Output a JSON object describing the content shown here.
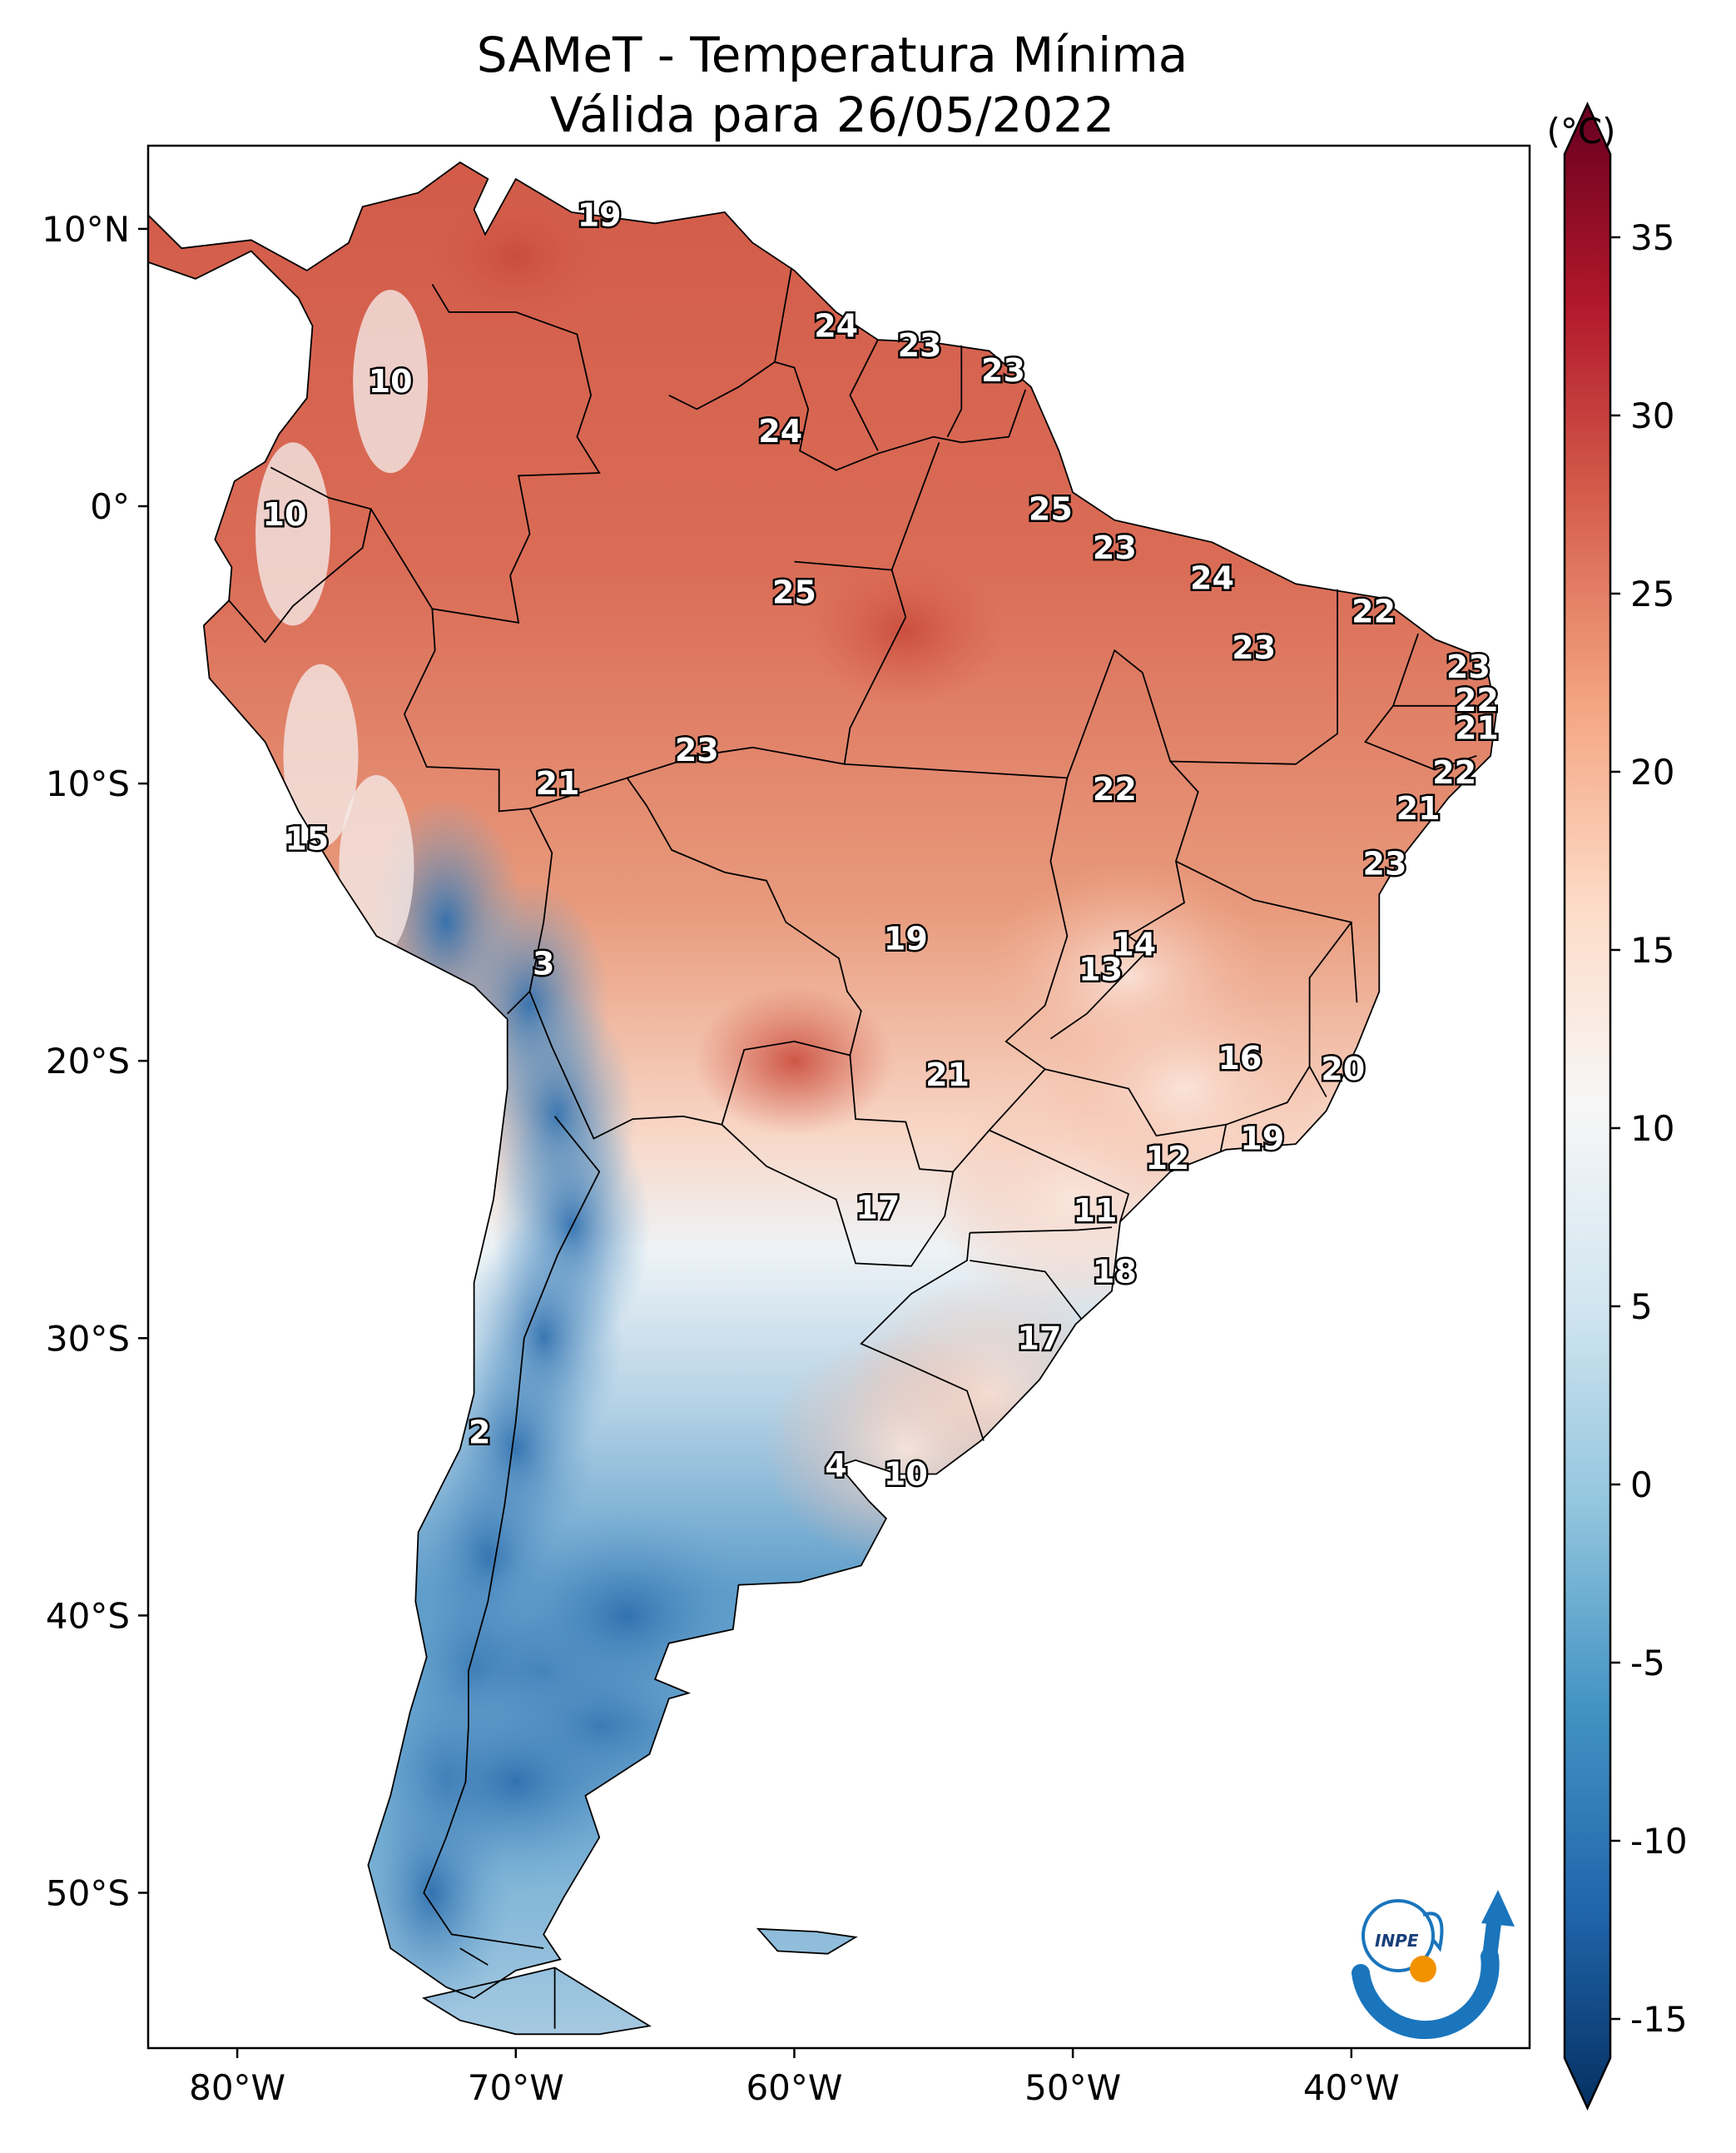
{
  "title_line1": "SAMeT - Temperatura Mínima",
  "title_line2": "Válida para 26/05/2022",
  "colorbar": {
    "unit": "(°C)",
    "ticks": [
      "35",
      "30",
      "25",
      "20",
      "15",
      "10",
      "5",
      "0",
      "-5",
      "-10",
      "-15"
    ],
    "colors": [
      "#67001f",
      "#b2182b",
      "#d6604d",
      "#f4a582",
      "#fddbc7",
      "#f7f7f7",
      "#d1e5f0",
      "#92c5de",
      "#4393c3",
      "#2166ac",
      "#053061"
    ]
  },
  "axes": {
    "lat_labels": [
      "10°N",
      "0°",
      "10°S",
      "20°S",
      "30°S",
      "40°S",
      "50°S"
    ],
    "lon_labels": [
      "80°W",
      "70°W",
      "60°W",
      "50°W",
      "40°W"
    ]
  },
  "station_labels": [
    {
      "text": "19",
      "lon": -67.0,
      "lat": 10.5
    },
    {
      "text": "10",
      "lon": -74.5,
      "lat": 4.5
    },
    {
      "text": "24",
      "lon": -58.5,
      "lat": 6.5
    },
    {
      "text": "23",
      "lon": -55.5,
      "lat": 5.8
    },
    {
      "text": "23",
      "lon": -52.5,
      "lat": 4.9
    },
    {
      "text": "24",
      "lon": -60.5,
      "lat": 2.7
    },
    {
      "text": "10",
      "lon": -78.3,
      "lat": -0.3
    },
    {
      "text": "25",
      "lon": -50.8,
      "lat": -0.1
    },
    {
      "text": "23",
      "lon": -48.5,
      "lat": -1.5
    },
    {
      "text": "25",
      "lon": -60.0,
      "lat": -3.1
    },
    {
      "text": "24",
      "lon": -45.0,
      "lat": -2.6
    },
    {
      "text": "22",
      "lon": -39.2,
      "lat": -3.8
    },
    {
      "text": "23",
      "lon": -43.5,
      "lat": -5.1
    },
    {
      "text": "23",
      "lon": -35.8,
      "lat": -5.8
    },
    {
      "text": "22",
      "lon": -35.5,
      "lat": -7.0
    },
    {
      "text": "21",
      "lon": -35.5,
      "lat": -8.0
    },
    {
      "text": "23",
      "lon": -63.5,
      "lat": -8.8
    },
    {
      "text": "21",
      "lon": -68.5,
      "lat": -10.0
    },
    {
      "text": "22",
      "lon": -48.5,
      "lat": -10.2
    },
    {
      "text": "22",
      "lon": -36.3,
      "lat": -9.6
    },
    {
      "text": "21",
      "lon": -37.6,
      "lat": -10.9
    },
    {
      "text": "15",
      "lon": -77.5,
      "lat": -12.0
    },
    {
      "text": "23",
      "lon": -38.8,
      "lat": -12.9
    },
    {
      "text": "14",
      "lon": -47.8,
      "lat": -15.8
    },
    {
      "text": "19",
      "lon": -56.0,
      "lat": -15.6
    },
    {
      "text": "13",
      "lon": -49.0,
      "lat": -16.7
    },
    {
      "text": "3",
      "lon": -69.0,
      "lat": -16.5
    },
    {
      "text": "16",
      "lon": -44.0,
      "lat": -19.9
    },
    {
      "text": "20",
      "lon": -40.3,
      "lat": -20.3
    },
    {
      "text": "21",
      "lon": -54.5,
      "lat": -20.5
    },
    {
      "text": "19",
      "lon": -43.2,
      "lat": -22.8
    },
    {
      "text": "12",
      "lon": -46.6,
      "lat": -23.5
    },
    {
      "text": "17",
      "lon": -57.0,
      "lat": -25.3
    },
    {
      "text": "11",
      "lon": -49.2,
      "lat": -25.4
    },
    {
      "text": "18",
      "lon": -48.5,
      "lat": -27.6
    },
    {
      "text": "17",
      "lon": -51.2,
      "lat": -30.0
    },
    {
      "text": "2",
      "lon": -71.3,
      "lat": -33.4
    },
    {
      "text": "4",
      "lon": -58.5,
      "lat": -34.6
    },
    {
      "text": "10",
      "lon": -56.0,
      "lat": -34.9
    }
  ]
}
